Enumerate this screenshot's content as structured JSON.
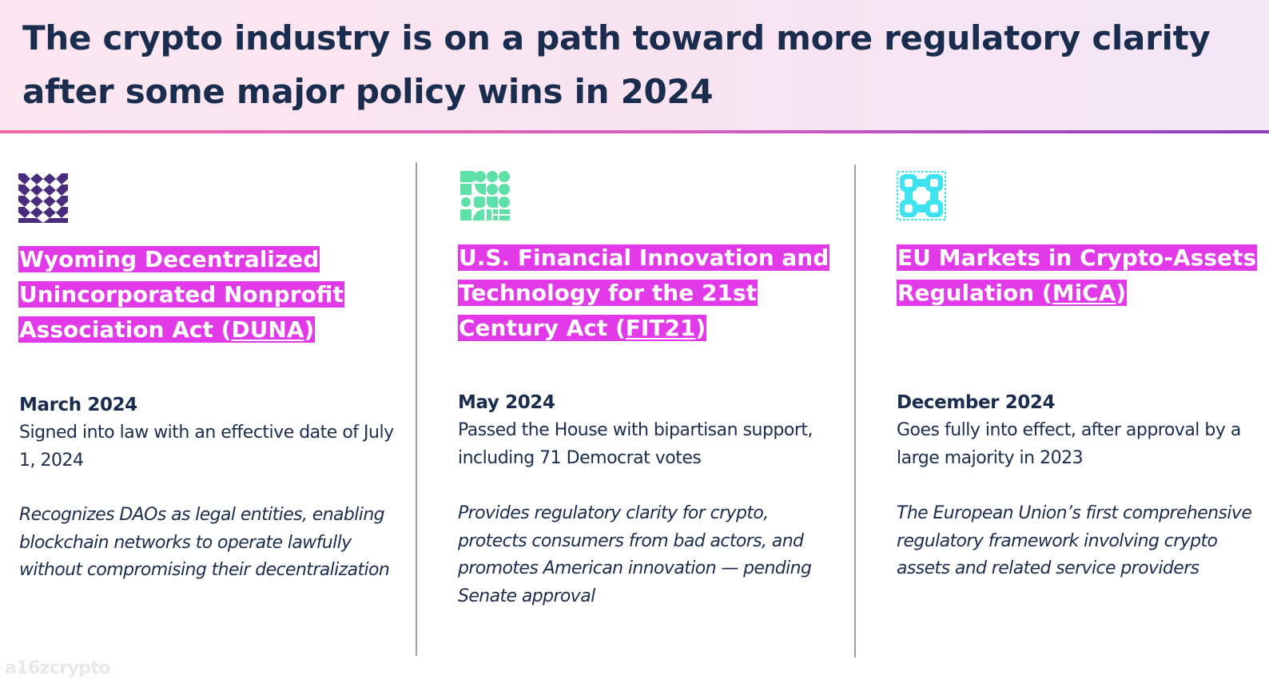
{
  "title": "The crypto industry is on a path toward more regulatory clarity after some major policy wins in 2024",
  "colors": {
    "highlight": "#e23ae9",
    "text": "#1b2d4f",
    "accent_purple": "#4a2c7e",
    "accent_green": "#5fe0a8",
    "accent_cyan": "#3fe3ef"
  },
  "items": [
    {
      "icon": "woven-pattern-icon",
      "title_prefix": "Wyoming Decentralized Unincorporated Nonprofit Association Act (",
      "title_abbr": "DUNA",
      "title_suffix": ")",
      "date": "March 2024",
      "status": "Signed into law with an effective date of July 1, 2024",
      "description": "Recognizes DAOs as legal entities, enabling blockchain networks to operate lawfully without compromising their decentralization"
    },
    {
      "icon": "geometric-shapes-icon",
      "title_prefix": "U.S. Financial Innovation and Technology for the 21st Century Act (",
      "title_abbr": "FIT21",
      "title_suffix": ")",
      "date": "May 2024",
      "status": "Passed the House with bipartisan support, including 71 Democrat votes",
      "description": "Provides regulatory clarity for crypto, protects consumers from bad actors, and promotes American innovation — pending Senate approval"
    },
    {
      "icon": "chain-links-icon",
      "title_prefix": "EU Markets in Crypto-Assets Regulation (",
      "title_abbr": "MiCA",
      "title_suffix": ")",
      "date": "December 2024",
      "status": "Goes fully into effect, after approval by a large majority in 2023",
      "description": "The European Union’s first comprehensive regulatory framework involving crypto assets and related service providers"
    }
  ],
  "watermark": "a16zcrypto"
}
